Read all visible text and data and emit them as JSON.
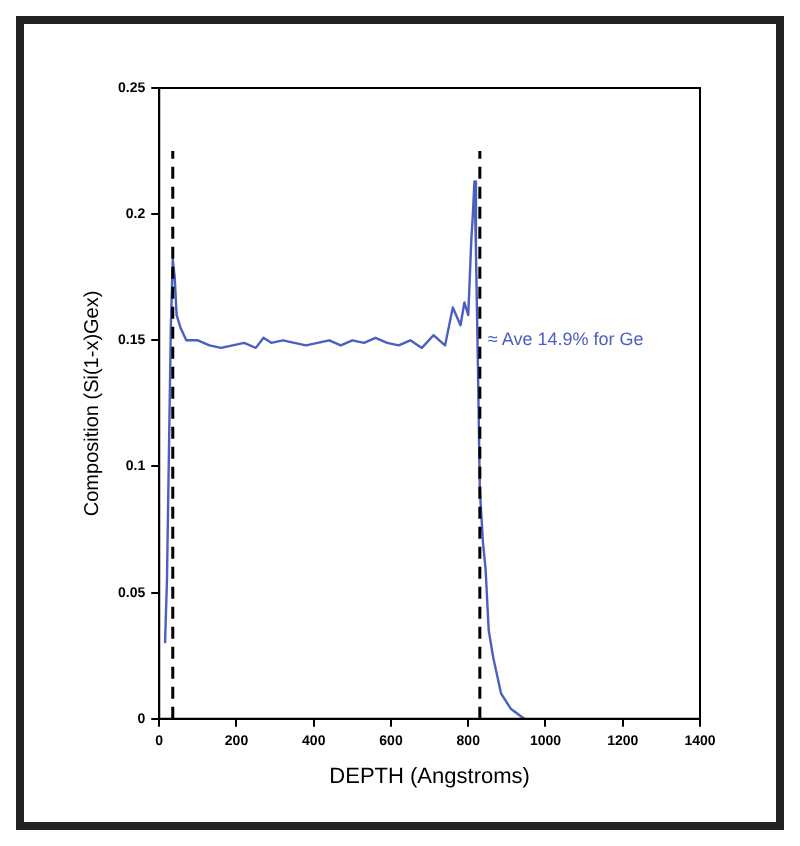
{
  "chart_data": {
    "type": "line",
    "xlabel": "DEPTH (Angstroms)",
    "ylabel": "Composition (Si(1-x)Gex)",
    "series": [
      {
        "color": "#4a5fc1",
        "x": [
          15,
          20,
          25,
          30,
          35,
          40,
          45,
          55,
          70,
          100,
          130,
          160,
          190,
          220,
          250,
          270,
          290,
          320,
          350,
          380,
          410,
          440,
          470,
          500,
          530,
          560,
          590,
          620,
          650,
          680,
          710,
          740,
          760,
          780,
          790,
          800,
          808,
          812,
          816,
          820,
          825,
          830,
          838,
          845,
          853,
          865,
          885,
          910,
          945
        ],
        "values": [
          0.03,
          0.055,
          0.105,
          0.155,
          0.182,
          0.175,
          0.16,
          0.155,
          0.15,
          0.15,
          0.148,
          0.147,
          0.148,
          0.149,
          0.147,
          0.151,
          0.149,
          0.15,
          0.149,
          0.148,
          0.149,
          0.15,
          0.148,
          0.15,
          0.149,
          0.151,
          0.149,
          0.148,
          0.15,
          0.147,
          0.152,
          0.148,
          0.163,
          0.156,
          0.165,
          0.16,
          0.19,
          0.2,
          0.213,
          0.185,
          0.14,
          0.091,
          0.07,
          0.059,
          0.035,
          0.024,
          0.01,
          0.004,
          0
        ]
      }
    ],
    "xlim": [
      0,
      1400
    ],
    "xticks": [
      0,
      200,
      400,
      600,
      800,
      1000,
      1200,
      1400
    ],
    "ylim": [
      0,
      0.25
    ],
    "yticks": [
      0,
      0.05,
      0.1,
      0.15,
      0.2,
      0.25
    ],
    "grid": false,
    "legend": false,
    "marker": "none",
    "line_style": "solid",
    "ref_lines": [
      {
        "axis": "x",
        "value": 35,
        "color": "#000000",
        "line_style": "dashed"
      },
      {
        "axis": "x",
        "value": 830,
        "color": "#000000",
        "line_style": "dashed"
      }
    ],
    "annotations": [
      "≈ Ave 14.9% for Ge"
    ]
  }
}
